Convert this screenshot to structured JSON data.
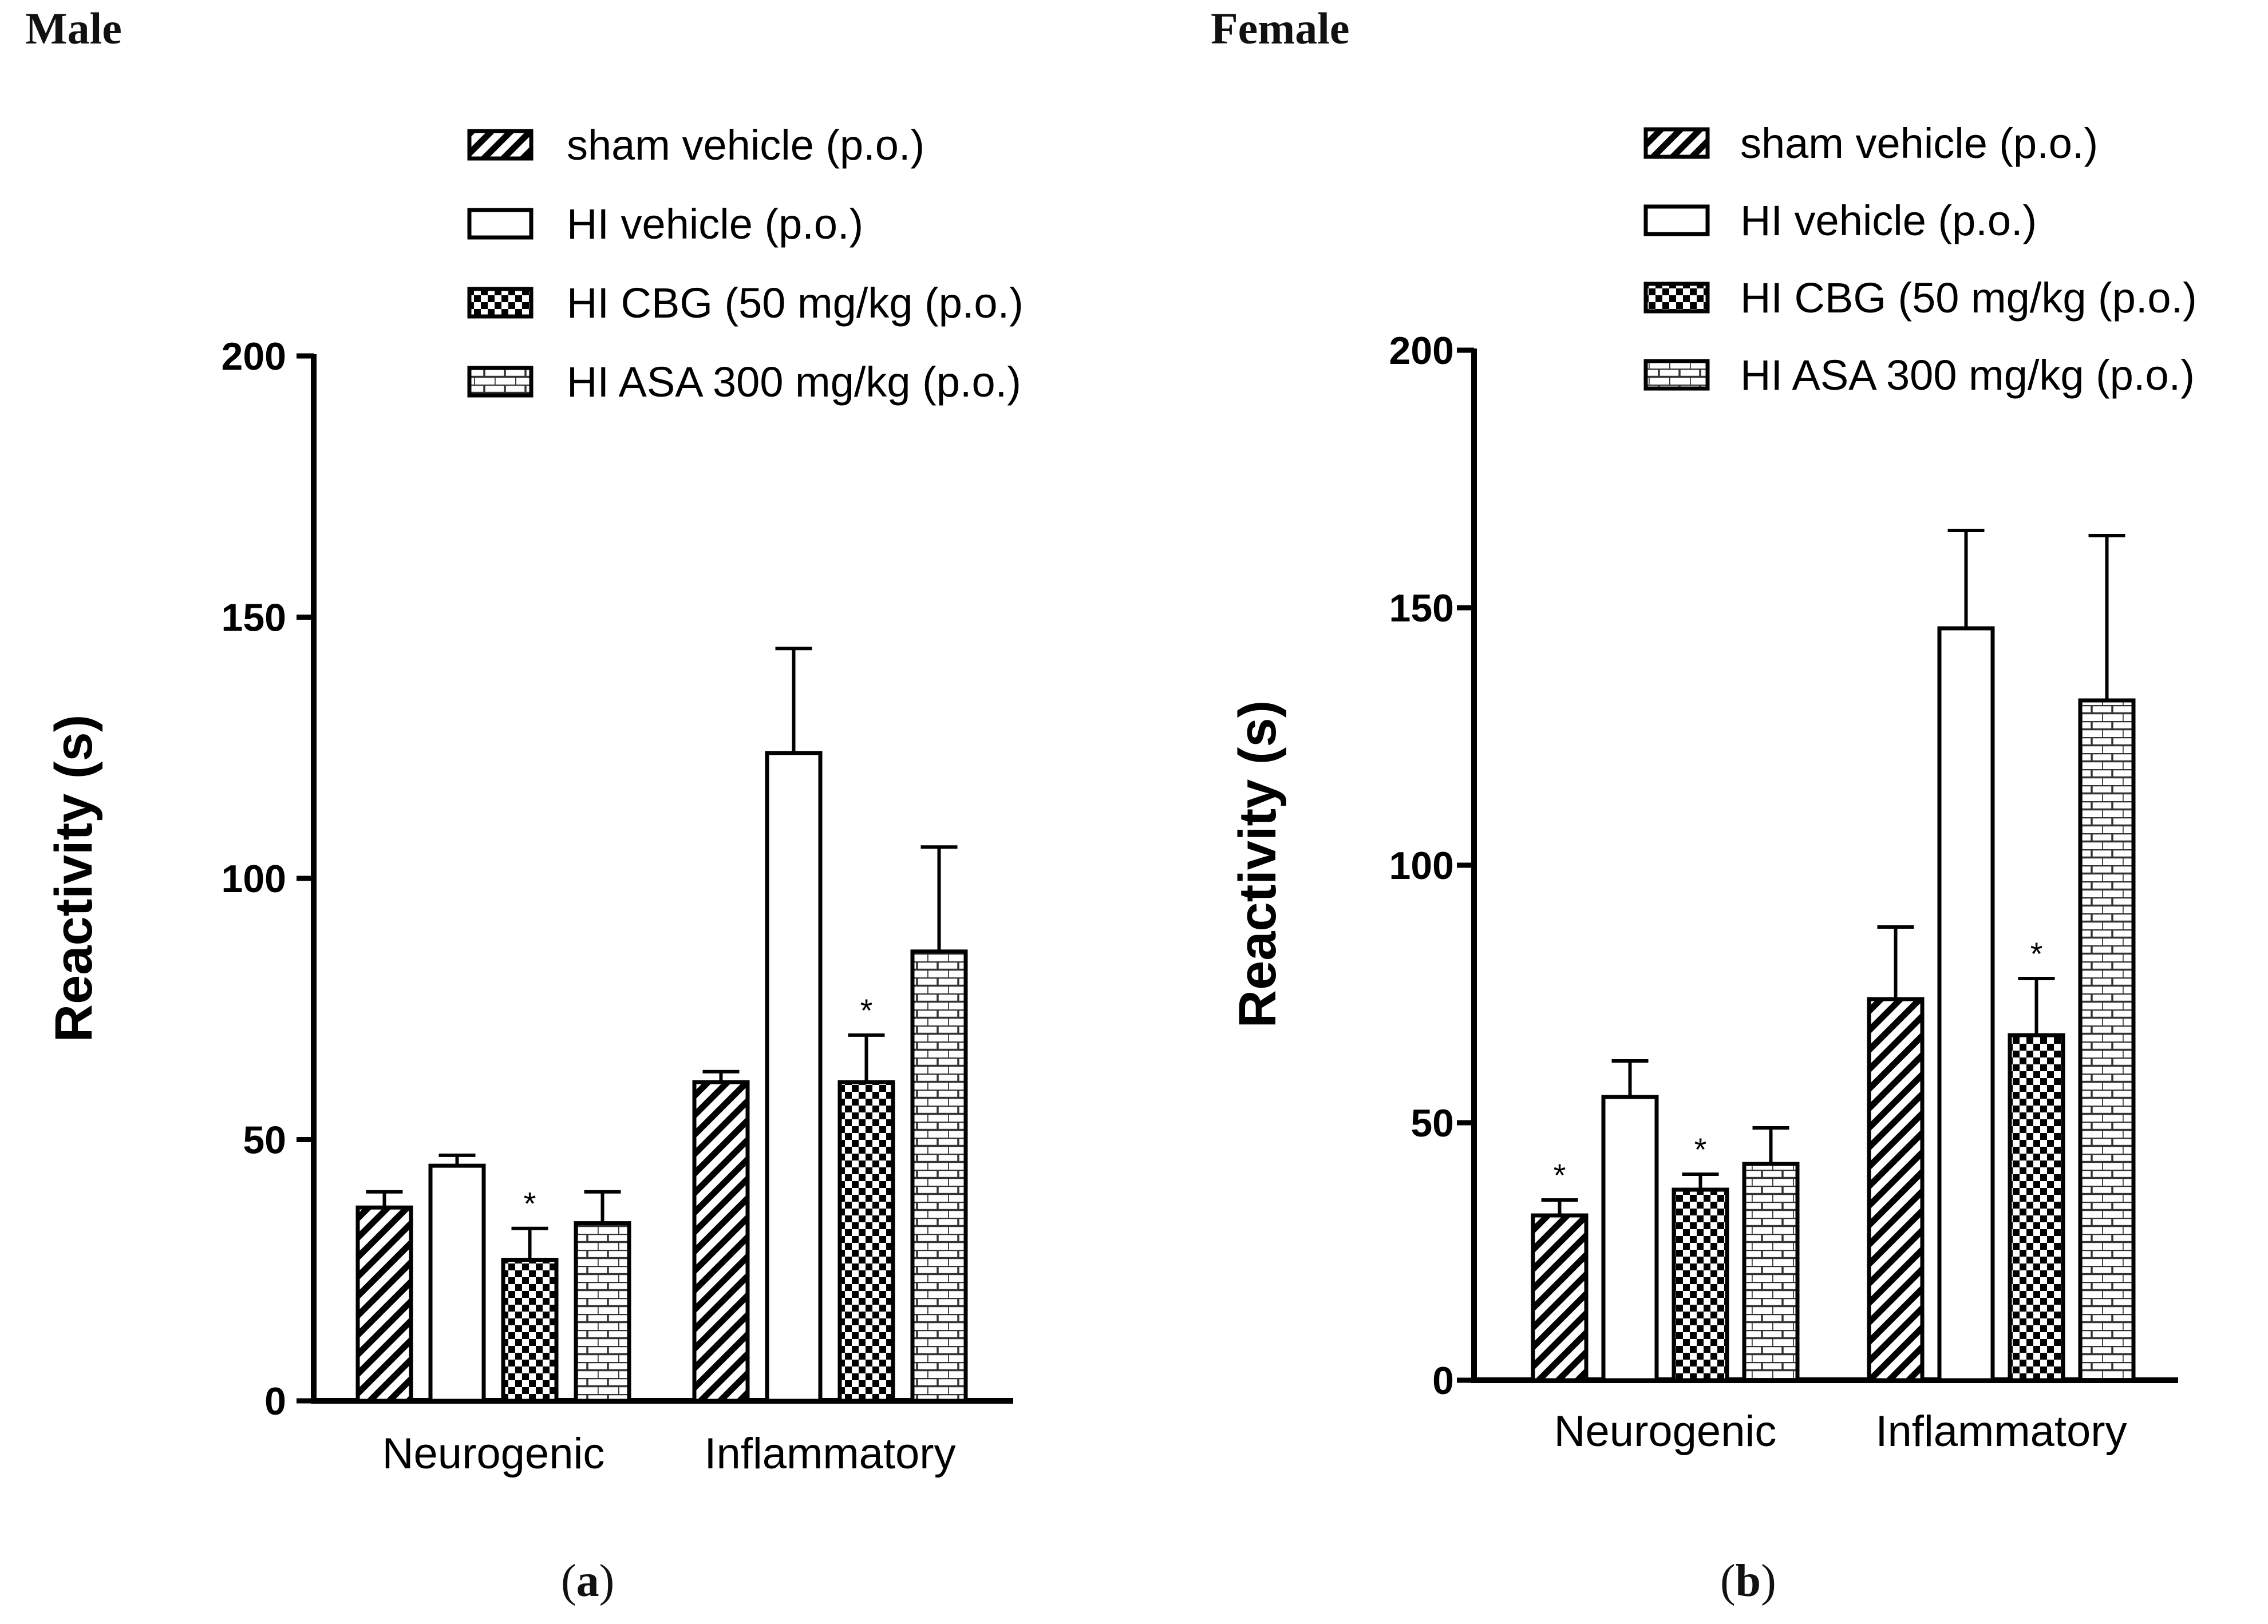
{
  "figure": {
    "titles": [
      "Male",
      "Female"
    ],
    "captions": [
      {
        "open": "(",
        "letter": "a",
        "close": ")"
      },
      {
        "open": "(",
        "letter": "b",
        "close": ")"
      }
    ]
  },
  "colors": {
    "bar_stroke": "#000000",
    "bar_fill": "#ffffff",
    "pattern_ink": "#000000",
    "asa_ink": "#333333",
    "text": "#111111"
  },
  "chart_data": [
    {
      "type": "bar",
      "title": "Male",
      "panel_label": "(a)",
      "categories": [
        "Neurogenic",
        "Inflammatory"
      ],
      "ylabel": "Reactivity (s)",
      "xlabel": "",
      "ylim": [
        0,
        200
      ],
      "yticks": [
        0,
        50,
        100,
        150,
        200
      ],
      "legend_position": "top",
      "series": [
        {
          "name": "sham vehicle (p.o.)",
          "pattern": "diagonal-stripes",
          "values": [
            37,
            61
          ],
          "errors": [
            3,
            2
          ],
          "significance": [
            "",
            ""
          ]
        },
        {
          "name": "HI vehicle (p.o.)",
          "pattern": "open",
          "values": [
            45,
            124
          ],
          "errors": [
            2,
            20
          ],
          "significance": [
            "",
            ""
          ]
        },
        {
          "name": "HI CBG (50 mg/kg (p.o.)",
          "pattern": "checkerboard",
          "values": [
            27,
            61
          ],
          "errors": [
            6,
            9
          ],
          "significance": [
            "*",
            "*"
          ]
        },
        {
          "name": "HI ASA 300 mg/kg (p.o.)",
          "pattern": "brick",
          "values": [
            34,
            86
          ],
          "errors": [
            6,
            20
          ],
          "significance": [
            "",
            ""
          ]
        }
      ]
    },
    {
      "type": "bar",
      "title": "Female",
      "panel_label": "(b)",
      "categories": [
        "Neurogenic",
        "Inflammatory"
      ],
      "ylabel": "Reactivity (s)",
      "xlabel": "",
      "ylim": [
        0,
        200
      ],
      "yticks": [
        0,
        50,
        100,
        150,
        200
      ],
      "legend_position": "top-right",
      "series": [
        {
          "name": "sham vehicle (p.o.)",
          "pattern": "diagonal-stripes",
          "values": [
            32,
            74
          ],
          "errors": [
            3,
            14
          ],
          "significance": [
            "*",
            ""
          ]
        },
        {
          "name": "HI vehicle (p.o.)",
          "pattern": "open",
          "values": [
            55,
            146
          ],
          "errors": [
            7,
            19
          ],
          "significance": [
            "",
            ""
          ]
        },
        {
          "name": "HI CBG (50 mg/kg (p.o.)",
          "pattern": "checkerboard",
          "values": [
            37,
            67
          ],
          "errors": [
            3,
            11
          ],
          "significance": [
            "*",
            "*"
          ]
        },
        {
          "name": "HI ASA 300 mg/kg (p.o.)",
          "pattern": "brick",
          "values": [
            42,
            132
          ],
          "errors": [
            7,
            32
          ],
          "significance": [
            "",
            ""
          ]
        }
      ]
    }
  ]
}
